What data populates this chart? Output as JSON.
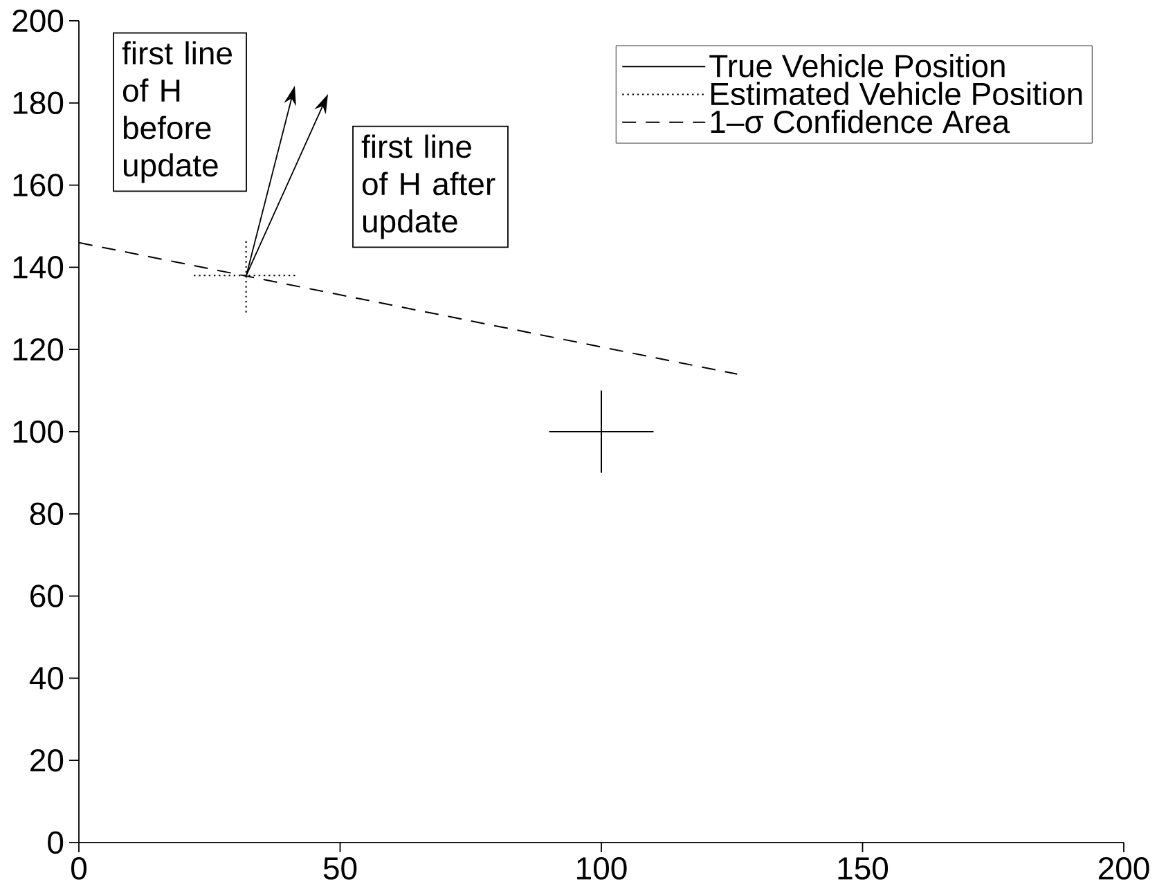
{
  "chart_data": {
    "type": "line",
    "series": [
      {
        "name": "True Vehicle Position",
        "color": "#000000",
        "line_style": "solid",
        "x": [
          90,
          110,
          null,
          100,
          100
        ],
        "values": [
          100,
          100,
          null,
          90,
          110
        ]
      },
      {
        "name": "Estimated Vehicle Position",
        "color": "#000000",
        "line_style": "dotted",
        "x": [
          22,
          42,
          null,
          32,
          32
        ],
        "values": [
          138,
          138,
          null,
          129,
          147
        ]
      },
      {
        "name": "1–σ Confidence Area",
        "color": "#000000",
        "line_style": "dashed",
        "x": [
          0,
          126
        ],
        "values": [
          146,
          114
        ]
      }
    ],
    "xlim": [
      0,
      200
    ],
    "xticks": [
      0,
      50,
      100,
      150,
      200
    ],
    "ylim": [
      0,
      200
    ],
    "yticks": [
      0,
      20,
      40,
      60,
      80,
      100,
      120,
      140,
      160,
      180,
      200
    ],
    "grid": false,
    "legend": "top right",
    "marker": "none",
    "annotations": [
      "first line of H before update",
      "first line of H after update"
    ]
  }
}
